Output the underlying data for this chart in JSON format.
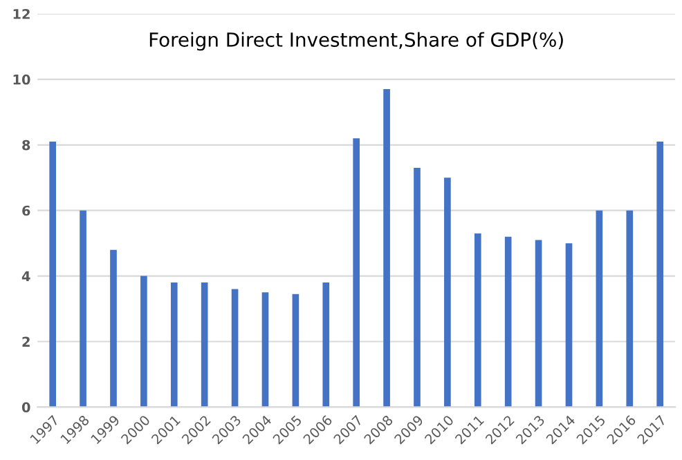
{
  "chart_data": {
    "type": "bar",
    "title": "Foreign Direct Investment,Share of GDP(%)",
    "categories": [
      "1997",
      "1998",
      "1999",
      "2000",
      "2001",
      "2002",
      "2003",
      "2004",
      "2005",
      "2006",
      "2007",
      "2008",
      "2009",
      "2010",
      "2011",
      "2012",
      "2013",
      "2014",
      "2015",
      "2016",
      "2017"
    ],
    "values": [
      8.1,
      6.0,
      4.8,
      4.0,
      3.8,
      3.8,
      3.6,
      3.5,
      3.45,
      3.8,
      8.2,
      9.7,
      7.3,
      7.0,
      5.3,
      5.2,
      5.1,
      5.0,
      6.0,
      6.0,
      8.1
    ],
    "color": "#4472c4",
    "ylim": [
      0,
      12
    ],
    "yticks": [
      0,
      2,
      4,
      6,
      8,
      10,
      12
    ],
    "grid": "y"
  }
}
